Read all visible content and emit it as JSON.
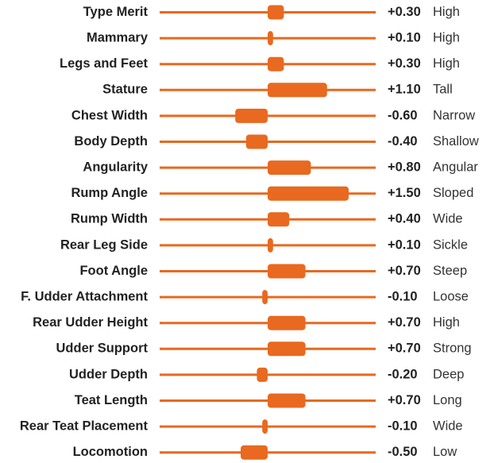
{
  "chart_data": {
    "type": "bar",
    "orientation": "horizontal",
    "color": "#e8691f",
    "categories": [
      "Type Merit",
      "Mammary",
      "Legs and Feet",
      "Stature",
      "Chest Width",
      "Body Depth",
      "Angularity",
      "Rump Angle",
      "Rump Width",
      "Rear Leg Side",
      "Foot Angle",
      "F. Udder Attachment",
      "Rear Udder Height",
      "Udder Support",
      "Udder Depth",
      "Teat Length",
      "Rear Teat Placement",
      "Locomotion"
    ],
    "values": [
      0.3,
      0.1,
      0.3,
      1.1,
      -0.6,
      -0.4,
      0.8,
      1.5,
      0.4,
      0.1,
      0.7,
      -0.1,
      0.7,
      0.7,
      -0.2,
      0.7,
      -0.1,
      -0.5
    ],
    "value_labels": [
      "+0.30",
      "+0.10",
      "+0.30",
      "+1.10",
      "-0.60",
      "-0.40",
      "+0.80",
      "+1.50",
      "+0.40",
      "+0.10",
      "+0.70",
      "-0.10",
      "+0.70",
      "+0.70",
      "-0.20",
      "+0.70",
      "-0.10",
      "-0.50"
    ],
    "descriptors": [
      "High",
      "High",
      "High",
      "Tall",
      "Narrow",
      "Shallow",
      "Angular",
      "Sloped",
      "Wide",
      "Sickle",
      "Steep",
      "Loose",
      "High",
      "Strong",
      "Deep",
      "Long",
      "Wide",
      "Low"
    ],
    "xlim": [
      -2,
      2
    ]
  }
}
